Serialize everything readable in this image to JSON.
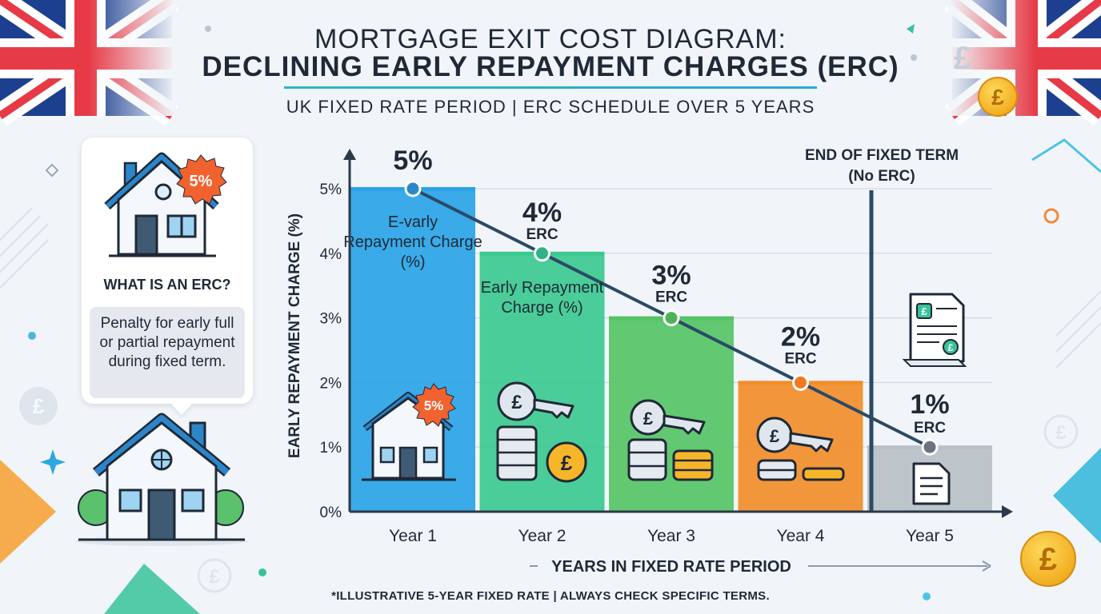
{
  "header": {
    "title_line1": "MORTGAGE EXIT COST DIAGRAM:",
    "title_line2": "DECLINING EARLY REPAYMENT CHARGES (ERC)",
    "subtitle": "UK FIXED RATE PERIOD | ERC SCHEDULE OVER 5 YEARS"
  },
  "info_card": {
    "badge": "5%",
    "question": "WHAT IS AN ERC?",
    "answer": "Penalty for early full or partial repayment during fixed term."
  },
  "chart_data": {
    "type": "bar",
    "categories": [
      "Year 1",
      "Year 2",
      "Year 3",
      "Year 4",
      "Year 5"
    ],
    "values": [
      5,
      4,
      3,
      2,
      1
    ],
    "value_labels": [
      "5%",
      "4%",
      "3%",
      "2%",
      "1%"
    ],
    "erc_tags": [
      "",
      "ERC",
      "ERC",
      "ERC",
      "ERC"
    ],
    "bar_inner_labels": [
      "E-varly Repayment Charge (%)",
      "Early Repayment Charge (%)",
      "",
      "",
      ""
    ],
    "bar_colors": [
      "#2aa3e6",
      "#3cc98f",
      "#56c466",
      "#f28d2a",
      "#b9c0c7"
    ],
    "line_point_colors": [
      "#2b86c9",
      "#2fb386",
      "#4fb35a",
      "#f07a22",
      "#6b7280"
    ],
    "bar_icon_badge": "5%",
    "ylabel": "EARLY REPAYMENT CHARGE (%)",
    "xlabel": "YEARS IN FIXED RATE PERIOD",
    "yticks": [
      "0%",
      "1%",
      "2%",
      "3%",
      "4%",
      "5%"
    ],
    "ylim": [
      0,
      5
    ],
    "grid": true,
    "annotation_line1": "END OF FIXED TERM",
    "annotation_line2": "(No ERC)"
  },
  "footnote": "*ILLUSTRATIVE 5-YEAR FIXED RATE | ALWAYS CHECK SPECIFIC TERMS.",
  "decor": {
    "pound_symbol": "£",
    "accent": "#2fb5c9",
    "flag_blue": "#1d3f8f",
    "flag_red": "#e63a46"
  }
}
